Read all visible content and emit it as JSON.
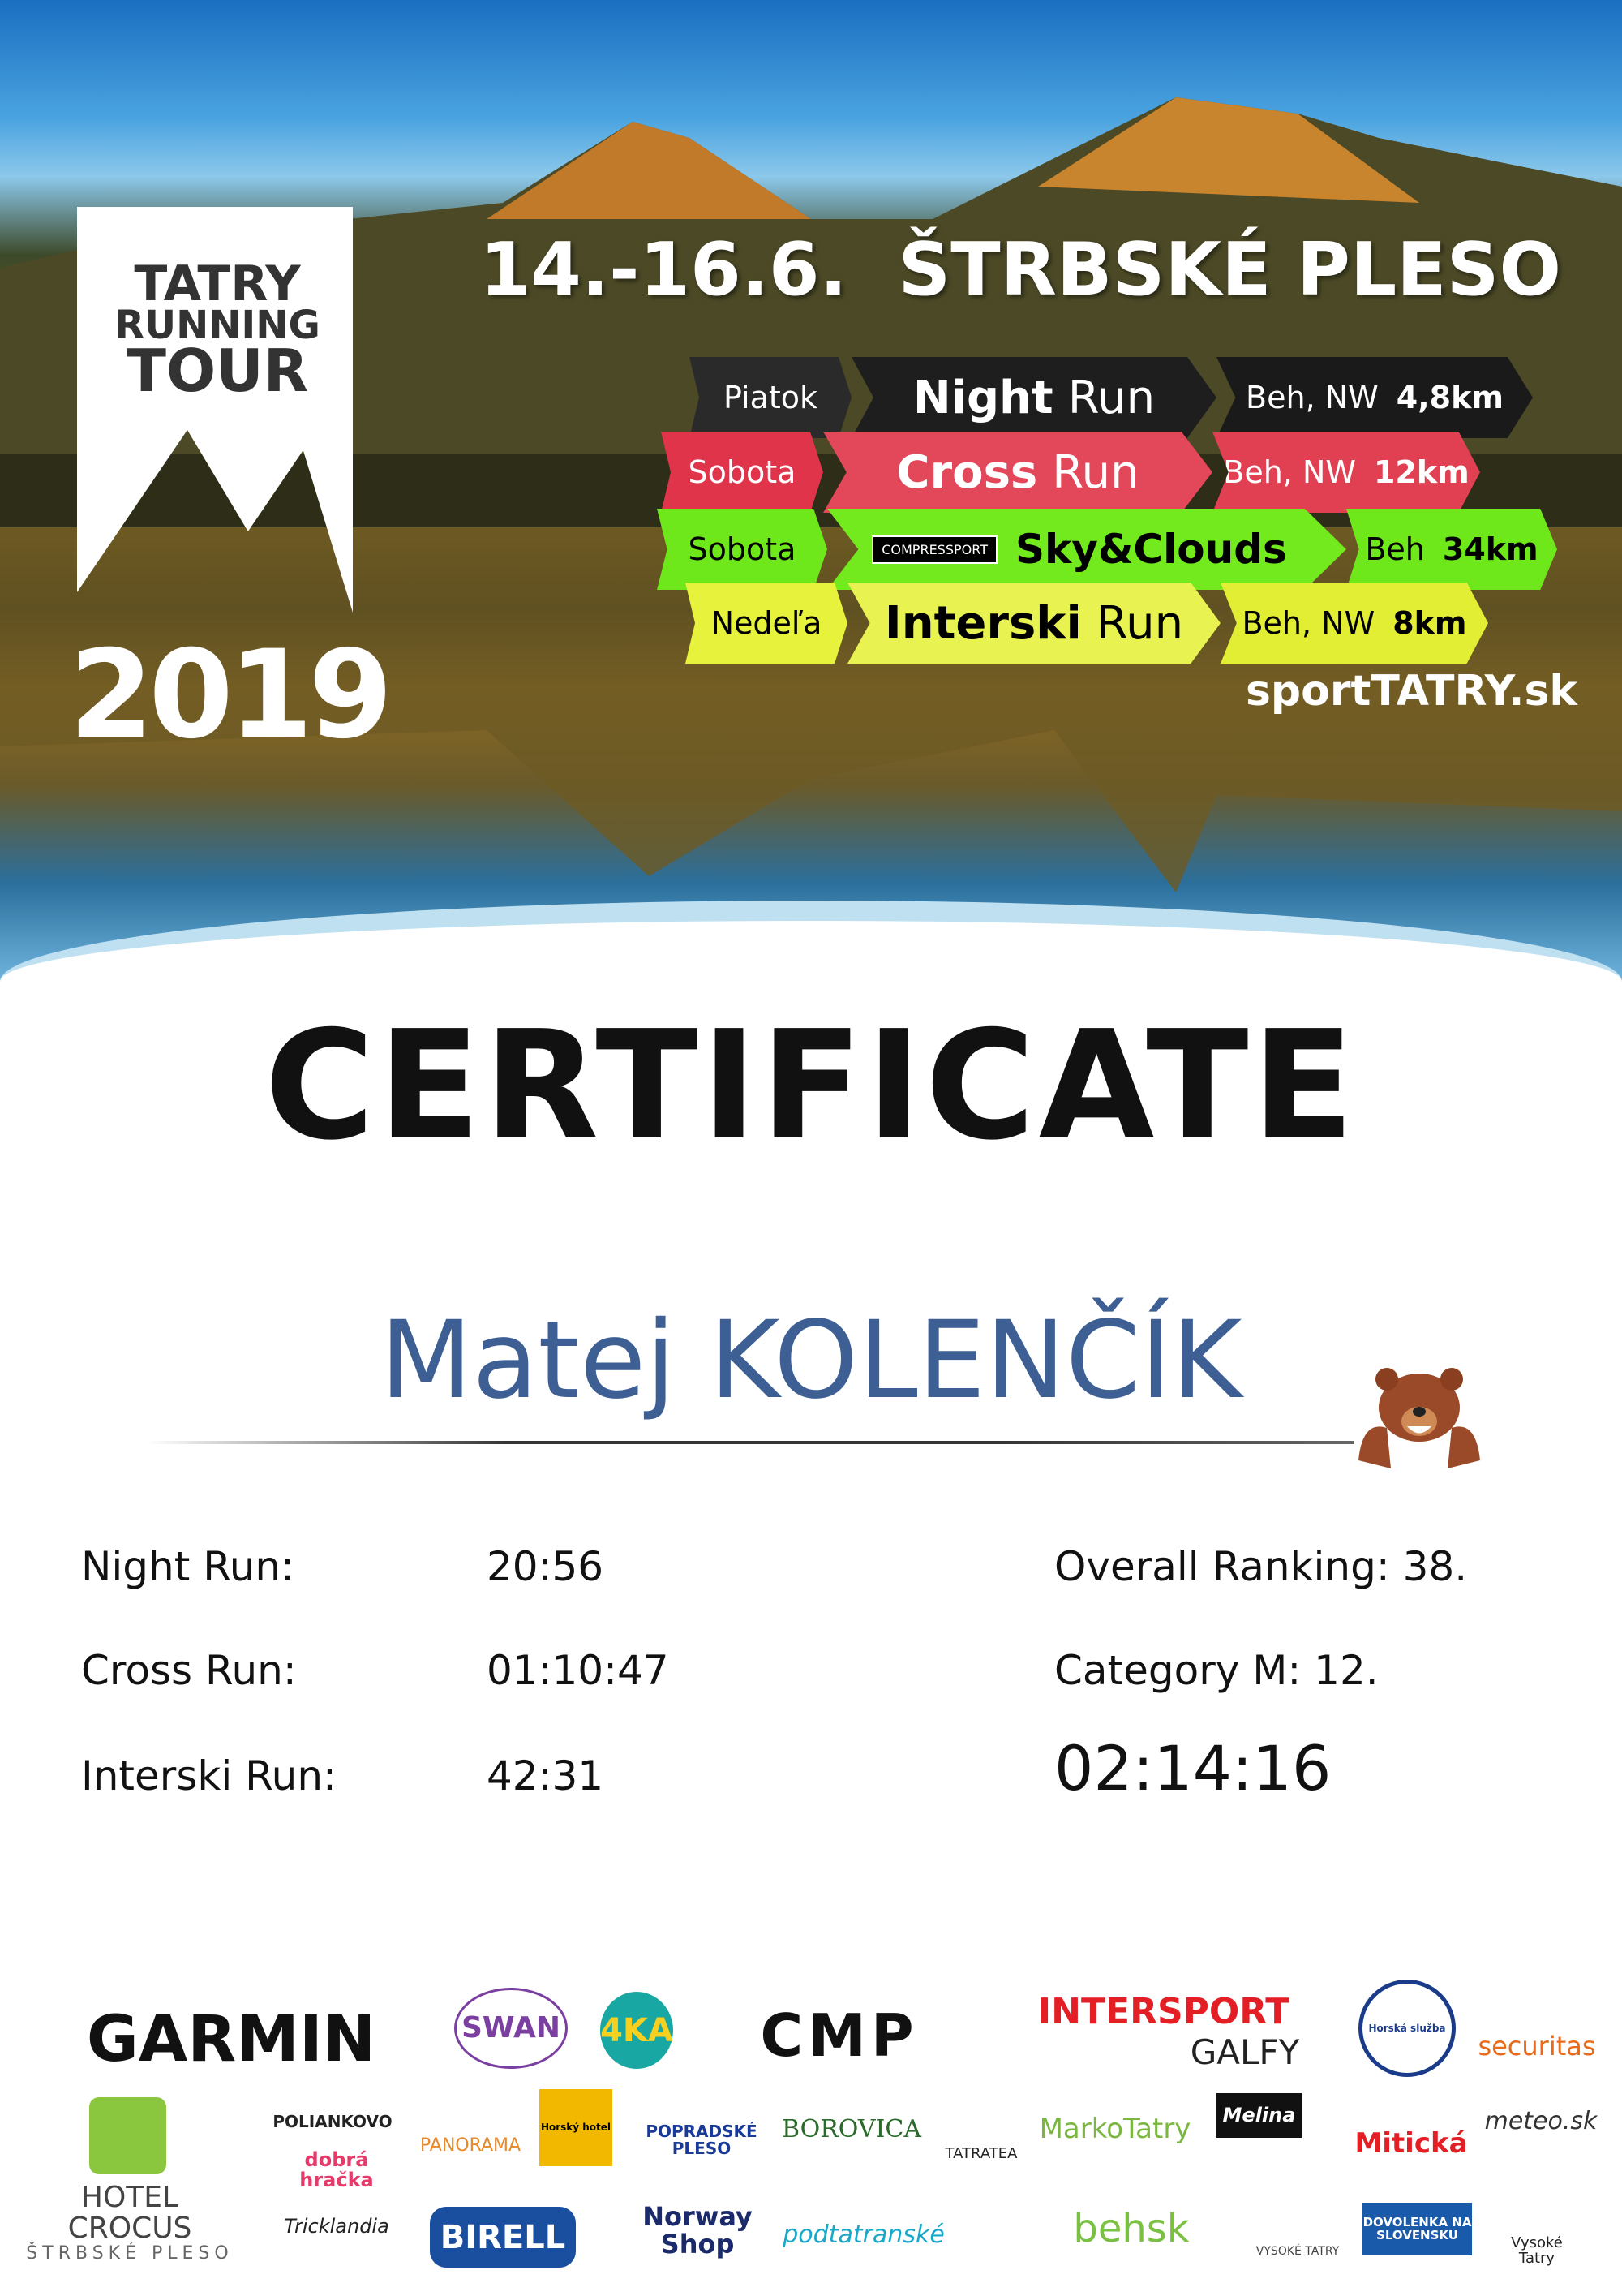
{
  "header": {
    "logo_lines": [
      "TATRY",
      "RUNNING",
      "TOUR"
    ],
    "year": "2019",
    "date": "14.-16.6.",
    "location": "ŠTRBSKÉ PLESO",
    "website": "sportTATRY.sk"
  },
  "events": [
    {
      "day": "Piatok",
      "name_bold": "Night",
      "name_light": "Run",
      "type": "Beh, NW",
      "distance": "4,8km",
      "color": "#222222",
      "text": "#ffffff"
    },
    {
      "day": "Sobota",
      "name_bold": "Cross",
      "name_light": "Run",
      "type": "Beh, NW",
      "distance": "12km",
      "color": "#e0344a",
      "text": "#ffffff"
    },
    {
      "day": "Sobota",
      "sponsor": "COMPRESSPORT",
      "name_bold": "Sky&Clouds",
      "name_light": "",
      "type": "Beh",
      "distance": "34km",
      "color": "#6ee81a",
      "text": "#000000"
    },
    {
      "day": "Nedeľa",
      "name_bold": "Interski",
      "name_light": "Run",
      "type": "Beh, NW",
      "distance": "8km",
      "color": "#e3f03a",
      "text": "#000000"
    }
  ],
  "certificate": {
    "title": "CERTIFICATE",
    "name": "Matej KOLENČÍK",
    "name_color": "#3d5f94"
  },
  "results": [
    {
      "label": "Night Run:",
      "value": "20:56"
    },
    {
      "label": "Cross Run:",
      "value": "01:10:47"
    },
    {
      "label": "Interski Run:",
      "value": "42:31"
    }
  ],
  "summary": {
    "overall": "Overall Ranking: 38.",
    "category": "Category M: 12.",
    "total": "02:14:16"
  },
  "sponsors": [
    "GARMIN",
    "SWAN",
    "4KA",
    "CMP",
    "INTERSPORT",
    "GALFY",
    "Horská služba",
    "securitas",
    "POLIANKOVO",
    "dobrá hračka",
    "PANORAMA",
    "Horský hotel",
    "POPRADSKÉ PLESO",
    "BOROVICA",
    "TATRATEA",
    "MarkoTatry",
    "Melina",
    "Mitická",
    "meteo.sk",
    "HOTEL CROCUS",
    "ŠTRBSKÉ PLESO",
    "Tricklandia",
    "BIRELL",
    "Norway Shop",
    "podtatranské",
    "behsk",
    "VYSOKÉ TATRY",
    "DOVOLENKA NA SLOVENSKU",
    "Vysoké Tatry"
  ]
}
